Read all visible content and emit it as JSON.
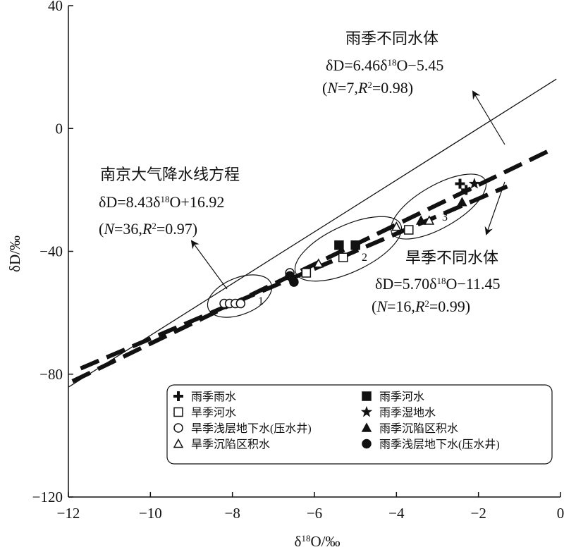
{
  "chart_data": {
    "type": "scatter",
    "x_label": [
      "δ",
      {
        "sup": "18"
      },
      "O/‰"
    ],
    "y_label": [
      "δD/‰"
    ],
    "xlim": [
      -12,
      0
    ],
    "ylim": [
      -120,
      40
    ],
    "xticks": [
      {
        "value": -12,
        "label": "−12"
      },
      {
        "value": -10,
        "label": "−10"
      },
      {
        "value": -8,
        "label": "−8"
      },
      {
        "value": -6,
        "label": "−6"
      },
      {
        "value": -4,
        "label": "−4"
      },
      {
        "value": -2,
        "label": "−2"
      },
      0
    ],
    "yticks": [
      {
        "value": -120,
        "label": "−120"
      },
      {
        "value": -80,
        "label": "−80"
      },
      {
        "value": -40,
        "label": "−40"
      },
      0,
      40
    ],
    "lines": [
      {
        "style": "solid",
        "slope": 8.43,
        "intercept": 16.92,
        "x": [
          -12,
          -0.1
        ]
      },
      {
        "style": "dashed",
        "slope": 6.46,
        "intercept": -5.45,
        "x": [
          -11.9,
          -0.3
        ]
      },
      {
        "style": "dashed",
        "slope": 5.7,
        "intercept": -11.45,
        "x": [
          -11.7,
          -1.3
        ]
      }
    ],
    "groups": [
      "1",
      "2",
      "3"
    ],
    "annotations": [
      {
        "lines": [
          [
            "雨季不同水体"
          ],
          [
            "δD=6.46δ",
            {
              "sup": "18"
            },
            "O−5.45"
          ],
          [
            "(",
            {
              "i": "N"
            },
            "=7,",
            {
              "i": "R"
            },
            {
              "sup": "2"
            },
            "=0.98)"
          ]
        ]
      },
      {
        "lines": [
          [
            "南京大气降水线方程"
          ],
          [
            "δD=8.43δ",
            {
              "sup": "18"
            },
            "O+16.92"
          ],
          [
            "(",
            {
              "i": "N"
            },
            "=36,",
            {
              "i": "R"
            },
            {
              "sup": "2"
            },
            "=0.97)"
          ]
        ]
      },
      {
        "lines": [
          [
            "旱季不同水体"
          ],
          [
            "δD=5.70δ",
            {
              "sup": "18"
            },
            "O−11.45"
          ],
          [
            "(",
            {
              "i": "N"
            },
            "=16,",
            {
              "i": "R"
            },
            {
              "sup": "2"
            },
            "=0.99)"
          ]
        ]
      }
    ],
    "series": [
      {
        "name": "雨季雨水",
        "marker": "plus",
        "color": "#111",
        "x": [
          -2.45,
          -2.3
        ],
        "values": [
          -18,
          -20
        ]
      },
      {
        "name": "雨季河水",
        "marker": "square-filled",
        "color": "#111",
        "x": [
          -5.4,
          -5.0
        ],
        "values": [
          -38,
          -38
        ]
      },
      {
        "name": "旱季河水",
        "marker": "square-open",
        "color": "#111",
        "x": [
          -6.2,
          -5.3,
          -3.7
        ],
        "values": [
          -47,
          -42,
          -33
        ]
      },
      {
        "name": "雨季湿地水",
        "marker": "star",
        "color": "#111",
        "x": [
          -2.1
        ],
        "values": [
          -18
        ]
      },
      {
        "name": "旱季浅层地下水(压水井)",
        "marker": "circle-open",
        "color": "#111",
        "x": [
          -8.2,
          -8.07,
          -7.93,
          -7.8,
          -6.6
        ],
        "values": [
          -57,
          -57,
          -57,
          -57,
          -47
        ]
      },
      {
        "name": "雨季沉陷区积水",
        "marker": "triangle-filled",
        "color": "#111",
        "x": [
          -2.4,
          -3.4
        ],
        "values": [
          -24,
          -30
        ]
      },
      {
        "name": "旱季沉陷区积水",
        "marker": "triangle-open",
        "color": "#111",
        "x": [
          -4.0,
          -3.2,
          -5.9
        ],
        "values": [
          -32,
          -30,
          -44
        ]
      },
      {
        "name": "雨季浅层地下水(压水井)",
        "marker": "circle-filled",
        "color": "#111",
        "x": [
          -6.6,
          -6.5
        ],
        "values": [
          -48,
          -50
        ]
      }
    ]
  }
}
